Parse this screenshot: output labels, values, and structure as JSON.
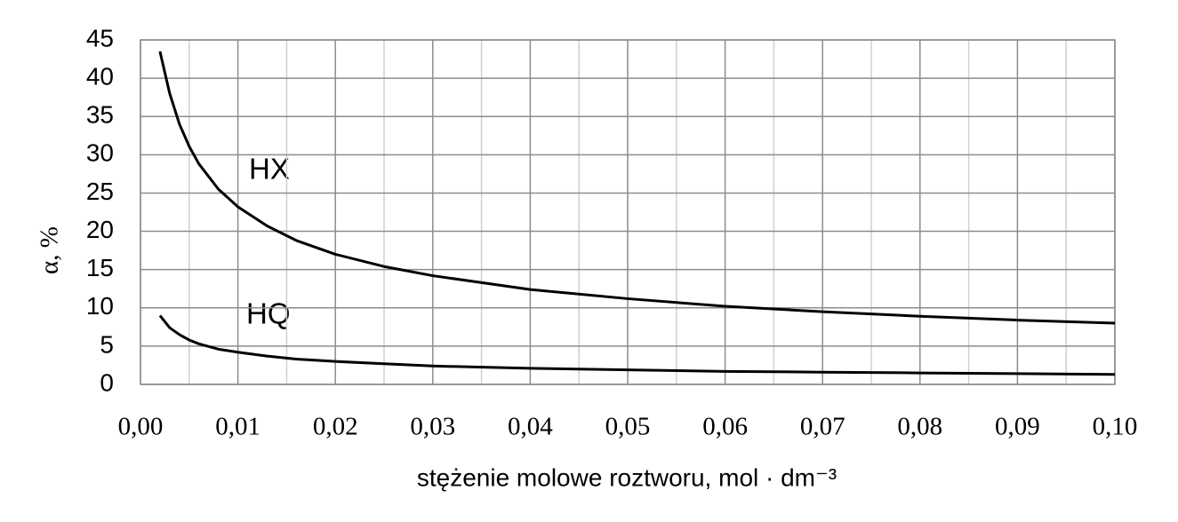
{
  "chart_data": {
    "type": "line",
    "x_label": "stężenie molowe roztworu, mol · dm⁻³",
    "y_label": "α, %",
    "annotations": [
      "HX",
      "HQ"
    ],
    "x": [
      0.002,
      0.003,
      0.004,
      0.005,
      0.006,
      0.008,
      0.01,
      0.013,
      0.016,
      0.02,
      0.025,
      0.03,
      0.04,
      0.05,
      0.06,
      0.07,
      0.08,
      0.09,
      0.1
    ],
    "series": [
      {
        "name": "HX",
        "color": "#000000",
        "values": [
          43.5,
          38.0,
          34.0,
          31.1,
          28.8,
          25.5,
          23.2,
          20.7,
          18.8,
          17.0,
          15.4,
          14.2,
          12.4,
          11.2,
          10.2,
          9.5,
          8.9,
          8.4,
          8.0
        ]
      },
      {
        "name": "HQ",
        "color": "#000000",
        "values": [
          9.0,
          7.4,
          6.5,
          5.8,
          5.3,
          4.6,
          4.2,
          3.7,
          3.3,
          3.0,
          2.7,
          2.4,
          2.1,
          1.9,
          1.7,
          1.6,
          1.5,
          1.4,
          1.3
        ]
      }
    ],
    "xlim": [
      0,
      0.1
    ],
    "xticks": [
      {
        "value": 0,
        "label": "0,00"
      },
      {
        "value": 0.01,
        "label": "0,01"
      },
      {
        "value": 0.02,
        "label": "0,02"
      },
      {
        "value": 0.03,
        "label": "0,03"
      },
      {
        "value": 0.04,
        "label": "0,04"
      },
      {
        "value": 0.05,
        "label": "0,05"
      },
      {
        "value": 0.06,
        "label": "0,06"
      },
      {
        "value": 0.07,
        "label": "0,07"
      },
      {
        "value": 0.08,
        "label": "0,08"
      },
      {
        "value": 0.09,
        "label": "0,09"
      },
      {
        "value": 0.1,
        "label": "0,10"
      }
    ],
    "ylim": [
      0,
      45
    ],
    "yticks": [
      0,
      5,
      10,
      15,
      20,
      25,
      30,
      35,
      40,
      45
    ],
    "grid": true,
    "minor_x_grid": true
  }
}
